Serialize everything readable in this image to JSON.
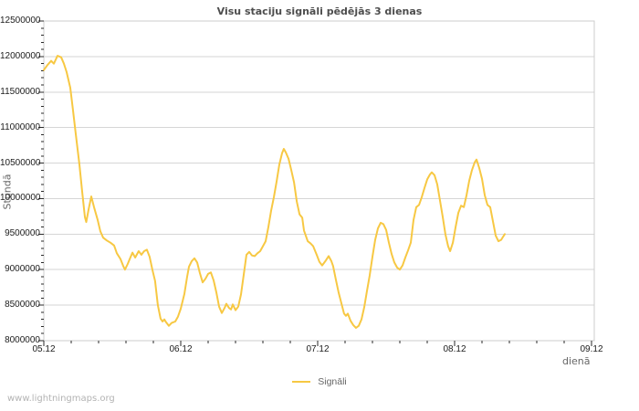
{
  "watermark": "www.lightningmaps.org",
  "colors": {
    "series": "#f7c843",
    "grid": "#d6d6d6",
    "border": "#cccccc",
    "tick": "#2a2a2a",
    "tick_text": "#1c1c1c",
    "title_text": "#4d4d4d",
    "axis_title_text": "#666666",
    "watermark_text": "#b3b3b3"
  },
  "chart_data": {
    "type": "line",
    "title": "Visu staciju signāli pēdējās 3 dienas",
    "xlabel": "dienā",
    "ylabel": "Stundā",
    "grid": "horizontal",
    "legend_position": "bottom-center",
    "xlim": [
      0,
      4
    ],
    "ylim": [
      8000000,
      12500000
    ],
    "x_tick_labels": [
      "05.12",
      "06.12",
      "07.12",
      "08.12",
      "09.12"
    ],
    "x_tick_positions": [
      0,
      1,
      2,
      3,
      4
    ],
    "x_minor_step": 0.2,
    "y_ticks": [
      8000000,
      8500000,
      9000000,
      9500000,
      10000000,
      10500000,
      11000000,
      11500000,
      12000000,
      12500000
    ],
    "y_minor_step": 100000,
    "series": [
      {
        "name": "Signāli",
        "color": "#f7c843",
        "points": [
          [
            0.0,
            11810000
          ],
          [
            0.027,
            11880000
          ],
          [
            0.053,
            11940000
          ],
          [
            0.073,
            11900000
          ],
          [
            0.1,
            12010000
          ],
          [
            0.127,
            11990000
          ],
          [
            0.147,
            11900000
          ],
          [
            0.167,
            11780000
          ],
          [
            0.193,
            11560000
          ],
          [
            0.213,
            11240000
          ],
          [
            0.233,
            10910000
          ],
          [
            0.26,
            10480000
          ],
          [
            0.28,
            10100000
          ],
          [
            0.3,
            9740000
          ],
          [
            0.31,
            9670000
          ],
          [
            0.327,
            9850000
          ],
          [
            0.347,
            10030000
          ],
          [
            0.367,
            9880000
          ],
          [
            0.393,
            9700000
          ],
          [
            0.413,
            9540000
          ],
          [
            0.433,
            9450000
          ],
          [
            0.46,
            9410000
          ],
          [
            0.487,
            9380000
          ],
          [
            0.513,
            9340000
          ],
          [
            0.533,
            9230000
          ],
          [
            0.56,
            9150000
          ],
          [
            0.58,
            9050000
          ],
          [
            0.593,
            9000000
          ],
          [
            0.613,
            9080000
          ],
          [
            0.627,
            9150000
          ],
          [
            0.647,
            9240000
          ],
          [
            0.667,
            9170000
          ],
          [
            0.693,
            9260000
          ],
          [
            0.713,
            9210000
          ],
          [
            0.733,
            9260000
          ],
          [
            0.753,
            9280000
          ],
          [
            0.773,
            9180000
          ],
          [
            0.793,
            9000000
          ],
          [
            0.813,
            8840000
          ],
          [
            0.833,
            8500000
          ],
          [
            0.853,
            8310000
          ],
          [
            0.867,
            8270000
          ],
          [
            0.88,
            8300000
          ],
          [
            0.893,
            8260000
          ],
          [
            0.913,
            8210000
          ],
          [
            0.933,
            8250000
          ],
          [
            0.96,
            8270000
          ],
          [
            0.98,
            8340000
          ],
          [
            1.0,
            8450000
          ],
          [
            1.027,
            8660000
          ],
          [
            1.047,
            8900000
          ],
          [
            1.06,
            9040000
          ],
          [
            1.08,
            9120000
          ],
          [
            1.1,
            9160000
          ],
          [
            1.12,
            9100000
          ],
          [
            1.14,
            8950000
          ],
          [
            1.16,
            8820000
          ],
          [
            1.18,
            8870000
          ],
          [
            1.2,
            8940000
          ],
          [
            1.22,
            8960000
          ],
          [
            1.24,
            8850000
          ],
          [
            1.26,
            8680000
          ],
          [
            1.28,
            8480000
          ],
          [
            1.3,
            8390000
          ],
          [
            1.32,
            8460000
          ],
          [
            1.333,
            8520000
          ],
          [
            1.353,
            8460000
          ],
          [
            1.367,
            8440000
          ],
          [
            1.38,
            8510000
          ],
          [
            1.4,
            8430000
          ],
          [
            1.42,
            8480000
          ],
          [
            1.44,
            8650000
          ],
          [
            1.46,
            8930000
          ],
          [
            1.48,
            9210000
          ],
          [
            1.5,
            9250000
          ],
          [
            1.52,
            9200000
          ],
          [
            1.54,
            9190000
          ],
          [
            1.56,
            9230000
          ],
          [
            1.58,
            9260000
          ],
          [
            1.6,
            9330000
          ],
          [
            1.62,
            9400000
          ],
          [
            1.64,
            9600000
          ],
          [
            1.66,
            9830000
          ],
          [
            1.68,
            10020000
          ],
          [
            1.7,
            10240000
          ],
          [
            1.72,
            10480000
          ],
          [
            1.74,
            10640000
          ],
          [
            1.753,
            10700000
          ],
          [
            1.767,
            10650000
          ],
          [
            1.787,
            10560000
          ],
          [
            1.807,
            10400000
          ],
          [
            1.827,
            10230000
          ],
          [
            1.847,
            9960000
          ],
          [
            1.867,
            9780000
          ],
          [
            1.887,
            9730000
          ],
          [
            1.9,
            9550000
          ],
          [
            1.927,
            9400000
          ],
          [
            1.947,
            9370000
          ],
          [
            1.967,
            9330000
          ],
          [
            1.993,
            9210000
          ],
          [
            2.013,
            9110000
          ],
          [
            2.033,
            9060000
          ],
          [
            2.06,
            9130000
          ],
          [
            2.08,
            9190000
          ],
          [
            2.1,
            9120000
          ],
          [
            2.113,
            9050000
          ],
          [
            2.133,
            8860000
          ],
          [
            2.153,
            8680000
          ],
          [
            2.173,
            8530000
          ],
          [
            2.193,
            8380000
          ],
          [
            2.207,
            8350000
          ],
          [
            2.22,
            8380000
          ],
          [
            2.24,
            8280000
          ],
          [
            2.26,
            8220000
          ],
          [
            2.28,
            8180000
          ],
          [
            2.3,
            8210000
          ],
          [
            2.32,
            8300000
          ],
          [
            2.34,
            8470000
          ],
          [
            2.36,
            8700000
          ],
          [
            2.38,
            8920000
          ],
          [
            2.4,
            9180000
          ],
          [
            2.42,
            9420000
          ],
          [
            2.44,
            9580000
          ],
          [
            2.46,
            9660000
          ],
          [
            2.48,
            9640000
          ],
          [
            2.5,
            9560000
          ],
          [
            2.52,
            9380000
          ],
          [
            2.54,
            9220000
          ],
          [
            2.56,
            9100000
          ],
          [
            2.58,
            9030000
          ],
          [
            2.6,
            9000000
          ],
          [
            2.62,
            9060000
          ],
          [
            2.64,
            9170000
          ],
          [
            2.66,
            9270000
          ],
          [
            2.68,
            9380000
          ],
          [
            2.7,
            9700000
          ],
          [
            2.72,
            9880000
          ],
          [
            2.74,
            9910000
          ],
          [
            2.76,
            10020000
          ],
          [
            2.78,
            10150000
          ],
          [
            2.8,
            10270000
          ],
          [
            2.82,
            10340000
          ],
          [
            2.833,
            10370000
          ],
          [
            2.853,
            10330000
          ],
          [
            2.873,
            10200000
          ],
          [
            2.893,
            9980000
          ],
          [
            2.913,
            9750000
          ],
          [
            2.933,
            9500000
          ],
          [
            2.953,
            9330000
          ],
          [
            2.967,
            9260000
          ],
          [
            2.987,
            9380000
          ],
          [
            3.007,
            9600000
          ],
          [
            3.027,
            9800000
          ],
          [
            3.047,
            9900000
          ],
          [
            3.067,
            9880000
          ],
          [
            3.087,
            10050000
          ],
          [
            3.107,
            10250000
          ],
          [
            3.127,
            10400000
          ],
          [
            3.147,
            10510000
          ],
          [
            3.16,
            10550000
          ],
          [
            3.18,
            10430000
          ],
          [
            3.2,
            10280000
          ],
          [
            3.22,
            10050000
          ],
          [
            3.24,
            9910000
          ],
          [
            3.26,
            9880000
          ],
          [
            3.28,
            9680000
          ],
          [
            3.3,
            9480000
          ],
          [
            3.32,
            9400000
          ],
          [
            3.34,
            9420000
          ],
          [
            3.353,
            9460000
          ],
          [
            3.367,
            9500000
          ]
        ]
      }
    ]
  }
}
